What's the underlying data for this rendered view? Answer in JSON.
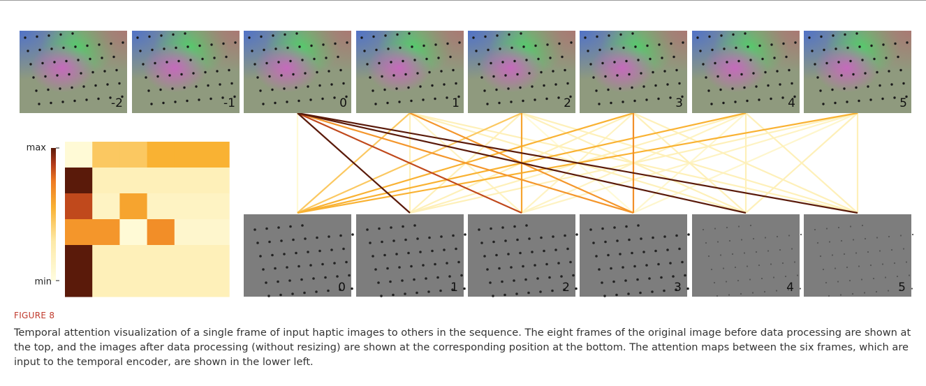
{
  "figure": {
    "top_frames": [
      "-2",
      "-1",
      "0",
      "1",
      "2",
      "3",
      "4",
      "5"
    ],
    "bottom_frames": [
      "0",
      "1",
      "2",
      "3",
      "4",
      "5"
    ],
    "colorbar": {
      "max_label": "max",
      "min_label": "min"
    },
    "attention": [
      [
        0.05,
        0.45,
        0.45,
        0.55,
        0.55,
        0.55
      ],
      [
        1.0,
        0.2,
        0.2,
        0.2,
        0.2,
        0.2
      ],
      [
        0.85,
        0.15,
        0.6,
        0.15,
        0.15,
        0.15
      ],
      [
        0.65,
        0.65,
        0.05,
        0.68,
        0.1,
        0.1
      ],
      [
        1.0,
        0.2,
        0.2,
        0.2,
        0.2,
        0.2
      ],
      [
        1.0,
        0.2,
        0.2,
        0.2,
        0.2,
        0.2
      ]
    ],
    "caption": {
      "label": "FIGURE 8",
      "text": "Temporal attention visualization of a single frame of input haptic images to others in the sequence. The eight frames of the original image before data processing are shown at the top, and the images after data processing (without resizing) are shown at the corresponding position at the bottom. The attention maps between the six frames, which are input to the temporal encoder, are shown in the lower left."
    }
  }
}
